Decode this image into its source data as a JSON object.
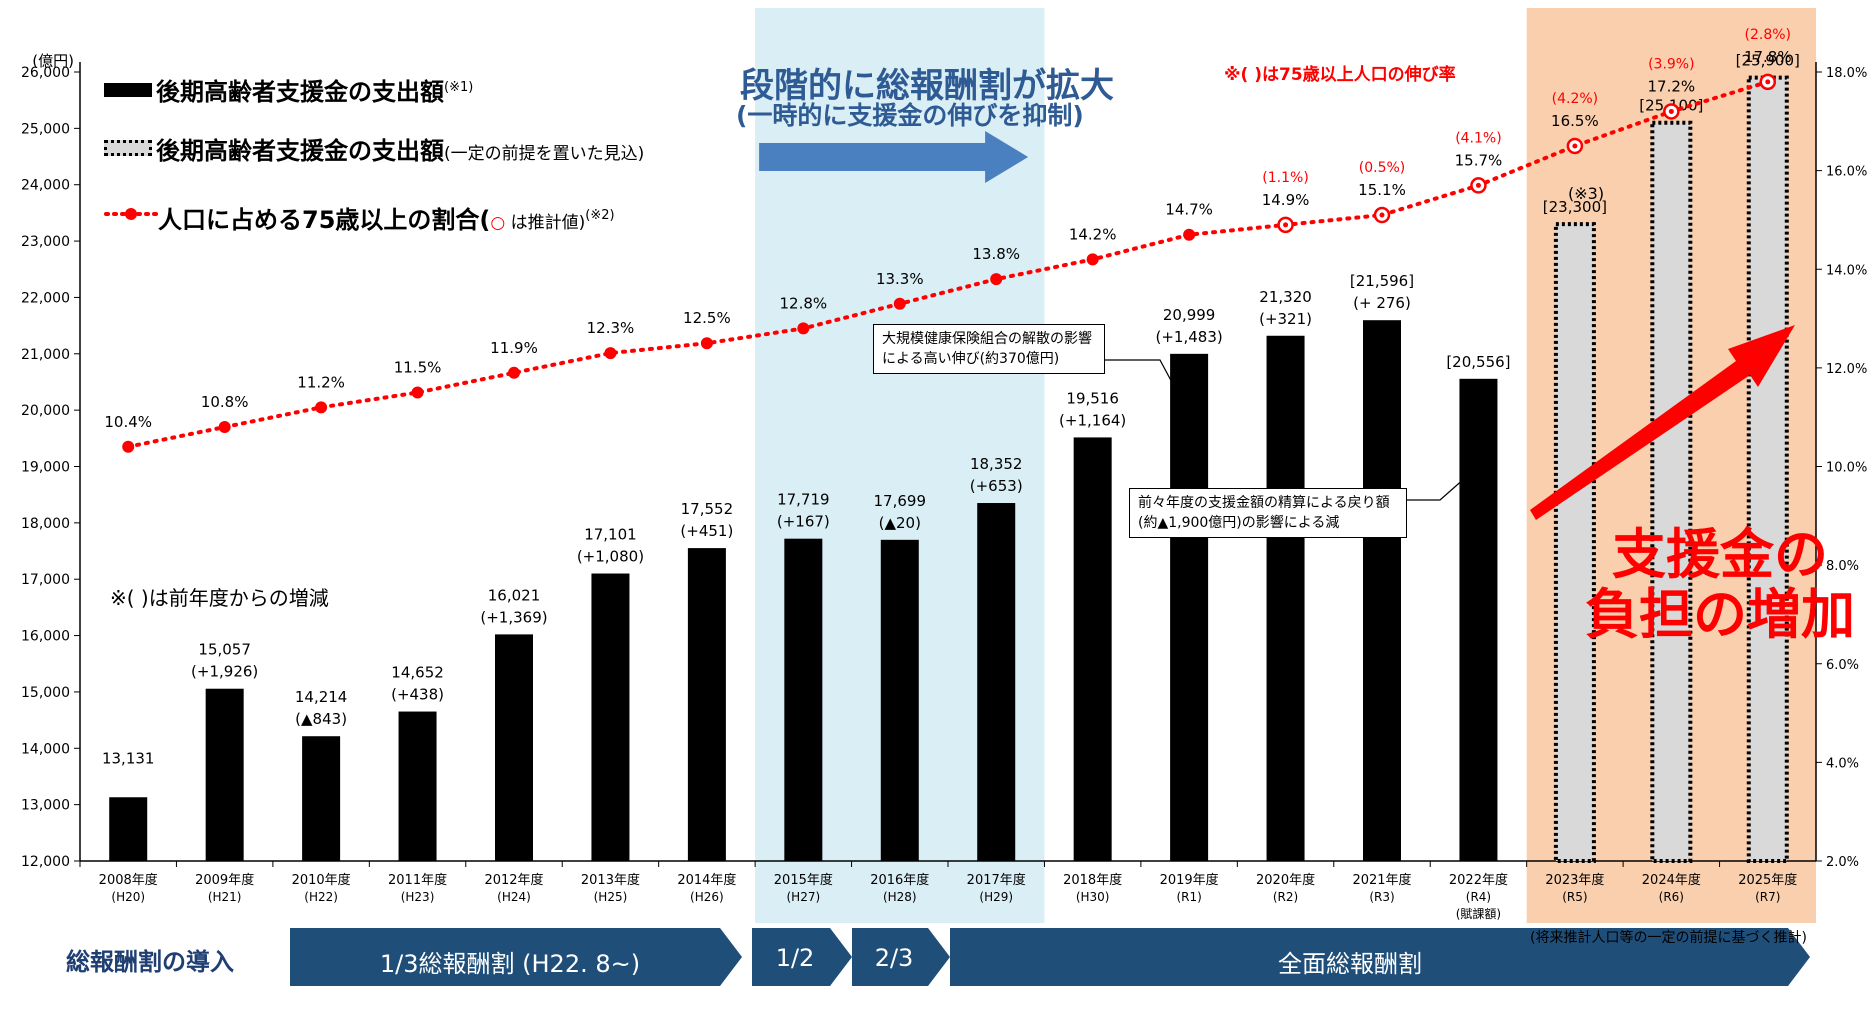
{
  "chart_data": {
    "type": "bar",
    "categories": [
      "2008年度\n(H20)",
      "2009年度\n(H21)",
      "2010年度\n(H22)",
      "2011年度\n(H23)",
      "2012年度\n(H24)",
      "2013年度\n(H25)",
      "2014年度\n(H26)",
      "2015年度\n(H27)",
      "2016年度\n(H28)",
      "2017年度\n(H29)",
      "2018年度\n(H30)",
      "2019年度\n(R1)",
      "2020年度\n(R2)",
      "2021年度\n(R3)",
      "2022年度\n(R4)\n(賦課額)",
      "2023年度\n(R5)",
      "2024年度\n(R6)",
      "2025年度\n(R7)"
    ],
    "ylabel": "(億円)",
    "ylim": [
      12000,
      26000
    ],
    "y2lim": [
      2.0,
      18.0
    ],
    "yticks": [
      "12,000",
      "13,000",
      "14,000",
      "15,000",
      "16,000",
      "17,000",
      "18,000",
      "19,000",
      "20,000",
      "21,000",
      "22,000",
      "23,000",
      "24,000",
      "25,000",
      "26,000"
    ],
    "y2ticks": [
      "2.0%",
      "4.0%",
      "6.0%",
      "8.0%",
      "10.0%",
      "12.0%",
      "14.0%",
      "16.0%",
      "18.0%"
    ],
    "series": [
      {
        "name": "後期高齢者支援金の支出額",
        "kind": "bar-solid",
        "values": [
          13131,
          15057,
          14214,
          14652,
          16021,
          17101,
          17552,
          17719,
          17699,
          18352,
          19516,
          20999,
          21320,
          21596,
          20556,
          null,
          null,
          null
        ],
        "labels": [
          "13,131",
          "15,057",
          "14,214",
          "14,652",
          "16,021",
          "17,101",
          "17,552",
          "17,719",
          "17,699",
          "18,352",
          "19,516",
          "20,999",
          "21,320",
          "[21,596]",
          "[20,556]",
          null,
          null,
          null
        ],
        "changes": [
          null,
          "(+1,926)",
          "(▲843)",
          "(+438)",
          "(+1,369)",
          "(+1,080)",
          "(+451)",
          "(+167)",
          "(▲20)",
          "(+653)",
          "(+1,164)",
          "(+1,483)",
          "(+321)",
          "(+ 276)",
          null,
          null,
          null,
          null
        ]
      },
      {
        "name": "後期高齢者支援金の支出額",
        "kind": "bar-dotted",
        "values": [
          null,
          null,
          null,
          null,
          null,
          null,
          null,
          null,
          null,
          null,
          null,
          null,
          null,
          null,
          null,
          23300,
          25100,
          25900
        ],
        "labels": [
          null,
          null,
          null,
          null,
          null,
          null,
          null,
          null,
          null,
          null,
          null,
          null,
          null,
          null,
          null,
          "[23,300]",
          "[25,100]",
          "[25,900]"
        ]
      },
      {
        "name": "人口に占める75歳以上の割合",
        "kind": "line",
        "axis": "right",
        "values": [
          10.4,
          10.8,
          11.2,
          11.5,
          11.9,
          12.3,
          12.5,
          12.8,
          13.3,
          13.8,
          14.2,
          14.7,
          14.9,
          15.1,
          15.7,
          16.5,
          17.2,
          17.8
        ],
        "labels": [
          "10.4%",
          "10.8%",
          "11.2%",
          "11.5%",
          "11.9%",
          "12.3%",
          "12.5%",
          "12.8%",
          "13.3%",
          "13.8%",
          "14.2%",
          "14.7%",
          "14.9%",
          "15.1%",
          "15.7%",
          "16.5%",
          "17.2%",
          "17.8%"
        ],
        "growth": [
          null,
          null,
          null,
          null,
          null,
          null,
          null,
          null,
          null,
          null,
          null,
          null,
          "(1.1%)",
          "(0.5%)",
          "(4.1%)",
          "(4.2%)",
          "(3.9%)",
          "(2.8%)"
        ],
        "estimated_from_index": 12
      }
    ],
    "colors": {
      "bar_solid": "#000000",
      "bar_dotted": "#d9d9d9",
      "line": "#ff0000",
      "band_blue": "#daeef5",
      "band_orange": "#f9cfae",
      "phase_arrow": "#1f4e79",
      "banner_arrow": "#4a7fc0"
    }
  },
  "legend": {
    "item1": "後期高齢者支援金の支出額",
    "item1_note": "(※1)",
    "item2": "後期高齢者支援金の支出額",
    "item2_sub": "(一定の前提を置いた見込)",
    "item3": "人口に占める75歳以上の割合(",
    "item3_circle": "○",
    "item3_sub": " は推計値)",
    "item3_note": "(※2)"
  },
  "notes": {
    "growth_note": "※(  )は75歳以上人口の伸び率",
    "change_note": "※(  )は前年度からの増減",
    "note3": "(※3)",
    "callout1": "大規模健康保険組合の解散の影響による高い伸び(約370億円)",
    "callout2": "前々年度の支援金額の精算による戻り額(約▲1,900億円)の影響による減",
    "footnote": "(将来推計人口等の一定の前提に基づく推計)"
  },
  "banner": {
    "title": "段階的に総報酬割が拡大",
    "subtitle": "(一時的に支援金の伸びを抑制)"
  },
  "big_label": {
    "line1": "支援金の",
    "line2": "負担の増加"
  },
  "phases": {
    "intro": "総報酬割の導入",
    "p1": "1/3総報酬割 (H22. 8~)",
    "p2": "1/2",
    "p3": "2/3",
    "p4": "全面総報酬割"
  }
}
